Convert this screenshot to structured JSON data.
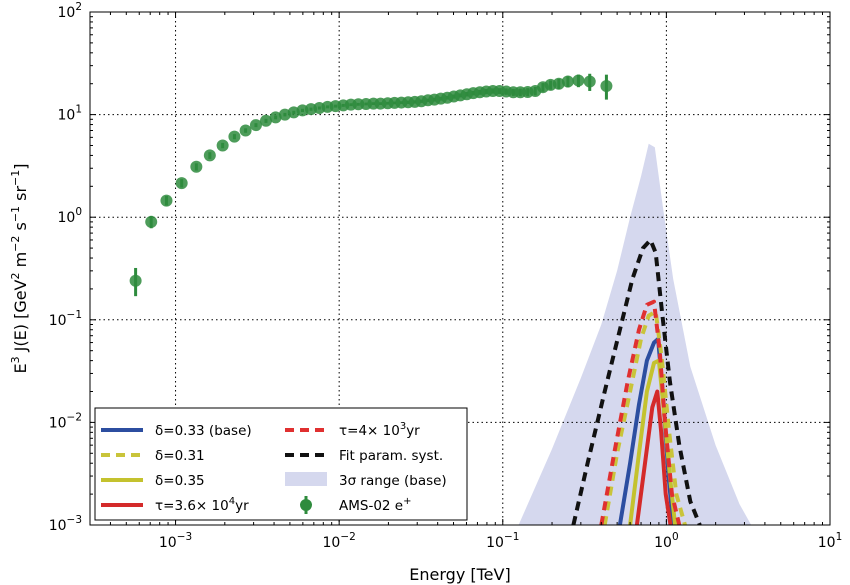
{
  "chart_data": {
    "type": "scatter",
    "xlabel": "Energy [TeV]",
    "ylabel": "E3 J(E) [GeV2 m−2 s−1 sr−1]",
    "xscale": "log",
    "yscale": "log",
    "xlim": [
      0.0003,
      10
    ],
    "ylim": [
      0.001,
      100
    ],
    "grid": true,
    "legend_position": "bottom-left",
    "x_ticks": [
      {
        "value": 0.001,
        "base": "10",
        "exp": "−3"
      },
      {
        "value": 0.01,
        "base": "10",
        "exp": "−2"
      },
      {
        "value": 0.1,
        "base": "10",
        "exp": "−1"
      },
      {
        "value": 1,
        "base": "10",
        "exp": "0"
      },
      {
        "value": 10,
        "base": "10",
        "exp": "1"
      }
    ],
    "y_ticks": [
      {
        "value": 0.001,
        "base": "10",
        "exp": "−3"
      },
      {
        "value": 0.01,
        "base": "10",
        "exp": "−2"
      },
      {
        "value": 0.1,
        "base": "10",
        "exp": "−1"
      },
      {
        "value": 1,
        "base": "10",
        "exp": "0"
      },
      {
        "value": 10,
        "base": "10",
        "exp": "1"
      },
      {
        "value": 100,
        "base": "10",
        "exp": "2"
      }
    ],
    "band": {
      "name": "3σ range (base)",
      "color": "#d5d8ee",
      "x": [
        0.125,
        0.2,
        0.3,
        0.4,
        0.5,
        0.6,
        0.7,
        0.78,
        0.85,
        0.95,
        1.1,
        1.4,
        2.0,
        2.8,
        3.3
      ],
      "y": [
        0.001,
        0.0055,
        0.027,
        0.09,
        0.3,
        1.0,
        2.5,
        5.2,
        4.8,
        1.3,
        0.25,
        0.035,
        0.006,
        0.0016,
        0.001
      ]
    },
    "series": [
      {
        "name": "δ=0.33 (base)",
        "color": "#2c4ea0",
        "style": "solid",
        "x": [
          0.52,
          0.6,
          0.68,
          0.76,
          0.84,
          0.89,
          0.95,
          1.03,
          1.1
        ],
        "y": [
          0.001,
          0.004,
          0.015,
          0.04,
          0.06,
          0.065,
          0.02,
          0.003,
          0.001
        ]
      },
      {
        "name": "δ=0.31",
        "color": "#c9c43a",
        "style": "dashed",
        "x": [
          0.42,
          0.5,
          0.6,
          0.7,
          0.78,
          0.86,
          0.94,
          1.04,
          1.15,
          1.3
        ],
        "y": [
          0.001,
          0.005,
          0.02,
          0.065,
          0.11,
          0.12,
          0.04,
          0.008,
          0.002,
          0.001
        ]
      },
      {
        "name": "δ=0.35",
        "color": "#c4c22e",
        "style": "solid",
        "x": [
          0.6,
          0.68,
          0.76,
          0.84,
          0.9,
          0.97,
          1.05,
          1.13
        ],
        "y": [
          0.001,
          0.005,
          0.02,
          0.038,
          0.04,
          0.012,
          0.003,
          0.001
        ]
      },
      {
        "name": "τ=3.6× 10⁴yr",
        "color": "#d42a2a",
        "style": "solid",
        "x": [
          0.66,
          0.74,
          0.82,
          0.88,
          0.93,
          0.99,
          1.06
        ],
        "y": [
          0.001,
          0.004,
          0.014,
          0.02,
          0.008,
          0.002,
          0.001
        ]
      },
      {
        "name": "τ=4× 10³yr",
        "color": "#e03030",
        "style": "dashed",
        "x": [
          0.4,
          0.48,
          0.58,
          0.68,
          0.76,
          0.84,
          0.91,
          0.98,
          1.08,
          1.2
        ],
        "y": [
          0.001,
          0.005,
          0.025,
          0.08,
          0.14,
          0.15,
          0.05,
          0.01,
          0.002,
          0.001
        ]
      },
      {
        "name": "Fit param. syst.",
        "color": "#111111",
        "style": "dashed",
        "x": [
          0.27,
          0.33,
          0.42,
          0.52,
          0.62,
          0.72,
          0.8,
          0.86,
          0.94,
          1.05,
          1.2,
          1.4,
          1.6
        ],
        "y": [
          0.001,
          0.004,
          0.02,
          0.08,
          0.25,
          0.5,
          0.6,
          0.45,
          0.12,
          0.025,
          0.006,
          0.0017,
          0.001
        ]
      }
    ],
    "points": {
      "name": "AMS-02 e+",
      "color": "#2e8b3d",
      "x": [
        0.00057,
        0.00071,
        0.00088,
        0.00109,
        0.00134,
        0.00162,
        0.00194,
        0.00229,
        0.00268,
        0.0031,
        0.00357,
        0.00409,
        0.00466,
        0.00528,
        0.00597,
        0.00673,
        0.00757,
        0.00849,
        0.0095,
        0.0106,
        0.0118,
        0.0131,
        0.0146,
        0.0162,
        0.0179,
        0.0198,
        0.0218,
        0.024,
        0.0264,
        0.029,
        0.0318,
        0.0349,
        0.0382,
        0.0418,
        0.0458,
        0.0502,
        0.055,
        0.0603,
        0.066,
        0.0724,
        0.0793,
        0.087,
        0.0955,
        0.105,
        0.116,
        0.128,
        0.142,
        0.158,
        0.176,
        0.196,
        0.22,
        0.25,
        0.29,
        0.34,
        0.43
      ],
      "y": [
        0.24,
        0.9,
        1.45,
        2.15,
        3.1,
        4.0,
        5.0,
        6.1,
        7.0,
        7.9,
        8.7,
        9.4,
        10.0,
        10.5,
        11.0,
        11.3,
        11.6,
        11.9,
        12.1,
        12.3,
        12.5,
        12.6,
        12.7,
        12.8,
        12.8,
        12.9,
        13.0,
        13.1,
        13.2,
        13.3,
        13.5,
        13.8,
        14.0,
        14.3,
        14.6,
        15.0,
        15.4,
        15.8,
        16.2,
        16.5,
        16.8,
        17.0,
        17.0,
        16.8,
        16.5,
        16.5,
        16.6,
        17.0,
        18.5,
        19.5,
        20.0,
        21.0,
        21.5,
        21.0,
        19.0
      ],
      "err_lo": [
        0.07,
        0.12,
        0.15,
        0.2,
        0.25,
        0.3,
        0.3,
        0.35,
        0.35,
        0.35,
        0.4,
        0.4,
        0.4,
        0.4,
        0.4,
        0.4,
        0.4,
        0.4,
        0.4,
        0.4,
        0.4,
        0.4,
        0.4,
        0.4,
        0.4,
        0.4,
        0.4,
        0.4,
        0.5,
        0.5,
        0.5,
        0.5,
        0.6,
        0.6,
        0.6,
        0.7,
        0.7,
        0.8,
        0.8,
        0.9,
        1.0,
        1.0,
        1.1,
        1.2,
        1.3,
        1.4,
        1.5,
        1.6,
        1.8,
        2.0,
        2.3,
        2.6,
        3.0,
        4.0,
        5.0
      ],
      "err_hi": [
        0.08,
        0.13,
        0.16,
        0.2,
        0.25,
        0.3,
        0.3,
        0.35,
        0.35,
        0.35,
        0.4,
        0.4,
        0.4,
        0.4,
        0.4,
        0.4,
        0.4,
        0.4,
        0.4,
        0.4,
        0.4,
        0.4,
        0.4,
        0.4,
        0.4,
        0.4,
        0.4,
        0.4,
        0.5,
        0.5,
        0.5,
        0.5,
        0.6,
        0.6,
        0.6,
        0.7,
        0.7,
        0.8,
        0.8,
        0.9,
        1.0,
        1.0,
        1.1,
        1.2,
        1.3,
        1.4,
        1.5,
        1.6,
        1.8,
        2.0,
        2.3,
        2.6,
        3.0,
        4.0,
        5.5
      ]
    },
    "legend": {
      "col1": [
        {
          "label": "δ=0.33 (base)",
          "kind": "solid",
          "color": "#2c4ea0"
        },
        {
          "label": "δ=0.31",
          "kind": "dashed",
          "color": "#c9c43a"
        },
        {
          "label": "δ=0.35",
          "kind": "solid",
          "color": "#c4c22e"
        },
        {
          "label_parts": [
            "τ=3.6× 10",
            "4",
            "yr"
          ],
          "kind": "solid",
          "color": "#d42a2a"
        }
      ],
      "col2": [
        {
          "label_parts": [
            "τ=4× 10",
            "3",
            "yr"
          ],
          "kind": "dashed",
          "color": "#e03030"
        },
        {
          "label": "Fit param. syst.",
          "kind": "dashed",
          "color": "#111111"
        },
        {
          "label": "3σ range (base)",
          "kind": "band",
          "color": "#d5d8ee"
        },
        {
          "label_parts": [
            "AMS-02 e",
            "+",
            ""
          ],
          "kind": "marker",
          "color": "#2e8b3d"
        }
      ]
    }
  }
}
